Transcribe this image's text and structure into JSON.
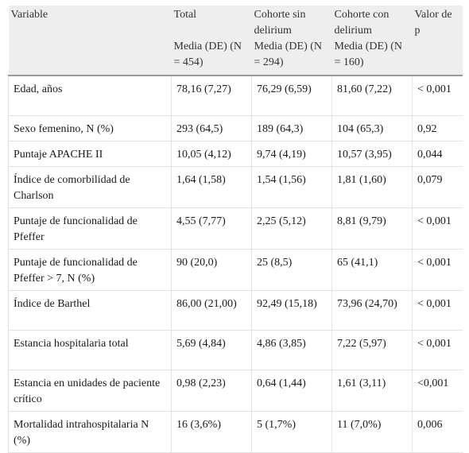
{
  "header": {
    "col_variable": "Variable",
    "col_total": "Total",
    "col_sin": "Cohorte sin delirium",
    "col_con": "Cohorte con delirium",
    "col_p": "Valor de p",
    "sub_total": "Media (DE) (N = 454)",
    "sub_sin": "Media (DE) (N = 294)",
    "sub_con": "Media (DE) (N = 160)"
  },
  "rows": [
    {
      "variable": "Edad, años",
      "total": "78,16 (7,27)",
      "sin": "76,29 (6,59)",
      "con": "81,60 (7,22)",
      "p": "< 0,001"
    },
    {
      "variable": "Sexo femenino, N (%)",
      "total": "293 (64,5)",
      "sin": "189 (64,3)",
      "con": "104 (65,3)",
      "p": "0,92"
    },
    {
      "variable": "Puntaje APACHE II",
      "total": "10,05 (4,12)",
      "sin": "9,74 (4,19)",
      "con": "10,57 (3,95)",
      "p": "0,044"
    },
    {
      "variable": "Índice de comorbilidad de Charlson",
      "total": "1,64 (1,58)",
      "sin": "1,54 (1,56)",
      "con": "1,81 (1,60)",
      "p": "0,079"
    },
    {
      "variable": "Puntaje de funcionalidad de Pfeffer",
      "total": "4,55 (7,77)",
      "sin": "2,25 (5,12)",
      "con": "8,81 (9,79)",
      "p": "< 0,001"
    },
    {
      "variable": "Puntaje de funcionalidad de Pfeffer > 7, N (%)",
      "total": "90 (20,0)",
      "sin": "25 (8,5)",
      "con": "65 (41,1)",
      "p": "< 0,001"
    },
    {
      "variable": "Índice de Barthel",
      "total": "86,00 (21,00)",
      "sin": "92,49 (15,18)",
      "con": "73,96 (24,70)",
      "p": "< 0,001"
    },
    {
      "variable": "Estancia hospitalaria total",
      "total": "5,69 (4,84)",
      "sin": "4,86 (3,85)",
      "con": "7,22 (5,97)",
      "p": "< 0,001"
    },
    {
      "variable": "Estancia en unidades de paciente crítico",
      "total": "0,98 (2,23)",
      "sin": "0,64 (1,44)",
      "con": "1,61 (3,11)",
      "p": "<0,001"
    },
    {
      "variable": "Mortalidad intrahospitalaria N (%)",
      "total": "16 (3,6%)",
      "sin": "5 (1,7%)",
      "con": "11 (7,0%)",
      "p": "0,006"
    }
  ]
}
